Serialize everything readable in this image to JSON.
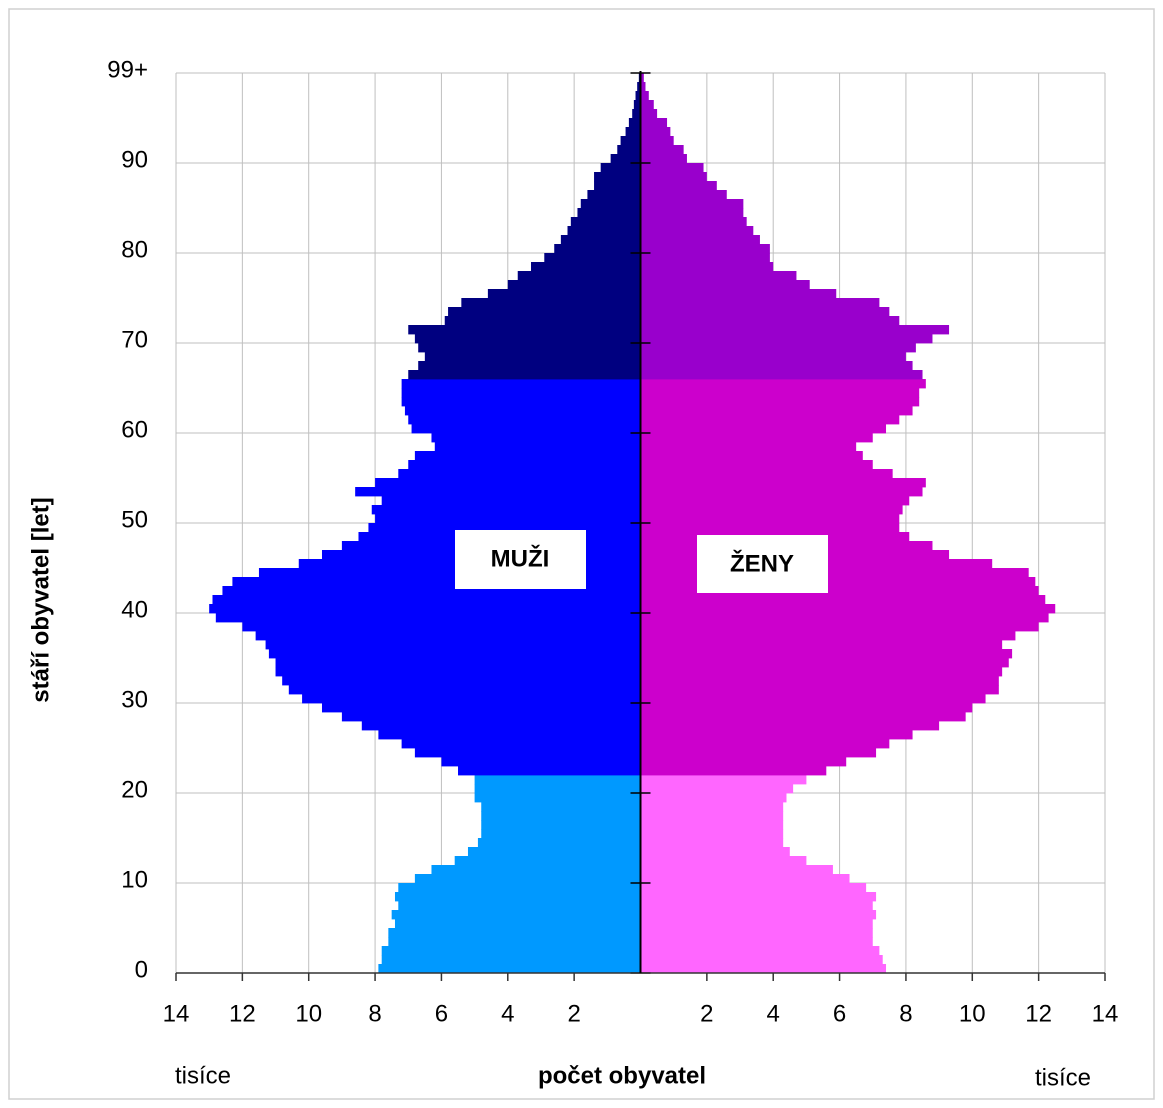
{
  "chart_data": {
    "type": "pyramid",
    "xlabel": "počet obyvatel",
    "ylabel": "stáří obyvatel [let]",
    "unit_labels": [
      "tisíce",
      "tisíce"
    ],
    "xlim": [
      0,
      14
    ],
    "xticks": [
      2,
      4,
      6,
      8,
      10,
      12,
      14
    ],
    "ylim": [
      0,
      100
    ],
    "yticks": [
      0,
      10,
      20,
      30,
      40,
      50,
      60,
      70,
      80,
      90,
      {
        "value": 100,
        "label": "99+"
      }
    ],
    "grid": true,
    "color_breaks": [
      22,
      66
    ],
    "series": [
      {
        "name": "MUŽI",
        "side": "left",
        "colors": [
          "#0099ff",
          "#0000ff",
          "#000080"
        ],
        "values": [
          7.9,
          7.8,
          7.8,
          7.6,
          7.6,
          7.4,
          7.5,
          7.3,
          7.4,
          7.3,
          6.8,
          6.3,
          5.6,
          5.2,
          4.9,
          4.8,
          4.8,
          4.8,
          4.8,
          5.0,
          5.0,
          5.0,
          5.5,
          6.0,
          6.8,
          7.2,
          7.9,
          8.4,
          9.0,
          9.6,
          10.2,
          10.6,
          10.8,
          11.0,
          11.0,
          11.2,
          11.3,
          11.6,
          12.0,
          12.8,
          13.0,
          12.9,
          12.6,
          12.3,
          11.5,
          10.3,
          9.6,
          9.0,
          8.5,
          8.2,
          8.0,
          8.1,
          7.8,
          8.6,
          8.0,
          7.3,
          7.0,
          6.8,
          6.2,
          6.3,
          6.9,
          7.0,
          7.1,
          7.2,
          7.2,
          7.2,
          7.0,
          6.7,
          6.5,
          6.7,
          6.8,
          7.0,
          5.9,
          5.8,
          5.4,
          4.6,
          4.0,
          3.7,
          3.3,
          2.9,
          2.6,
          2.4,
          2.2,
          2.1,
          1.9,
          1.8,
          1.6,
          1.4,
          1.4,
          1.2,
          0.9,
          0.7,
          0.6,
          0.45,
          0.35,
          0.25,
          0.2,
          0.15,
          0.1,
          0.05
        ]
      },
      {
        "name": "ŽENY",
        "side": "right",
        "colors": [
          "#ff66ff",
          "#cc00cc",
          "#9900cc"
        ],
        "values": [
          7.4,
          7.3,
          7.2,
          7.0,
          7.0,
          7.0,
          7.1,
          7.0,
          7.1,
          6.8,
          6.3,
          5.8,
          5.0,
          4.5,
          4.3,
          4.3,
          4.3,
          4.3,
          4.3,
          4.4,
          4.6,
          5.0,
          5.6,
          6.2,
          7.1,
          7.5,
          8.2,
          9.0,
          9.8,
          10.0,
          10.4,
          10.8,
          10.8,
          10.9,
          11.1,
          11.2,
          10.9,
          11.3,
          12.0,
          12.3,
          12.5,
          12.2,
          12.0,
          11.9,
          11.7,
          10.6,
          9.3,
          8.8,
          8.1,
          7.8,
          7.8,
          7.9,
          8.1,
          8.5,
          8.6,
          7.6,
          7.0,
          6.7,
          6.5,
          7.0,
          7.4,
          7.8,
          8.2,
          8.4,
          8.4,
          8.6,
          8.5,
          8.2,
          8.0,
          8.3,
          8.8,
          9.3,
          7.8,
          7.5,
          7.2,
          5.9,
          5.1,
          4.7,
          4.0,
          3.9,
          3.9,
          3.6,
          3.4,
          3.2,
          3.1,
          3.1,
          2.6,
          2.3,
          2.0,
          1.9,
          1.4,
          1.3,
          1.0,
          0.9,
          0.8,
          0.5,
          0.4,
          0.25,
          0.15,
          0.1
        ]
      }
    ]
  }
}
